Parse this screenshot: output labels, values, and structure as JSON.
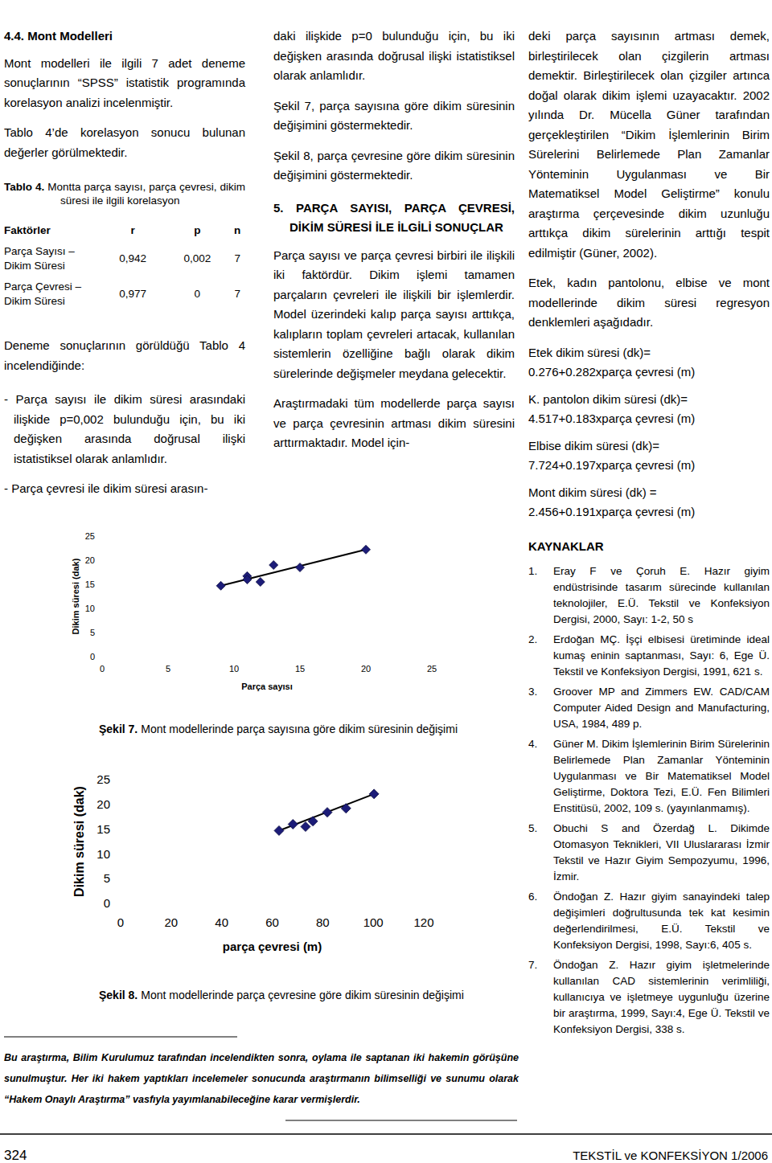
{
  "text": {
    "section_heading": "4.4. Mont Modelleri",
    "intro": [
      "Mont modelleri ile ilgili 7 adet deneme sonuçlarının “SPSS” istatistik programında korelasyon analizi incelenmiştir.",
      "Tablo 4’de korelasyon sonucu bulunan değerler görülmektedir."
    ],
    "table": {
      "label": "Tablo 4.",
      "caption": "Montta parça sayısı, parça çevresi, dikim süresi ile ilgili korelasyon",
      "header": [
        "Faktörler",
        "r",
        "p",
        "n"
      ],
      "rows": [
        [
          "Parça Sayısı – Dikim Süresi",
          "0,942",
          "0,002",
          "7"
        ],
        [
          "Parça Çevresi – Dikim Süresi",
          "0,977",
          "0",
          "7"
        ]
      ]
    },
    "after_table": "Deneme sonuçlarının görüldüğü Tablo 4 incelendiğinde:",
    "bullets": [
      "- Parça sayısı ile dikim süresi arasındaki ilişkide p=0,002 bulunduğu için, bu iki değişken arasında doğrusal ilişki istatistiksel olarak anlamlıdır.",
      "- Parça çevresi ile dikim süresi arasın-"
    ],
    "col2_paragraphs": [
      "daki ilişkide p=0 bulunduğu için, bu iki değişken arasında doğrusal ilişki istatistiksel olarak anlamlıdır.",
      "Şekil 7, parça sayısına göre dikim süresinin değişimini göstermektedir.",
      "Şekil 8, parça çevresine göre dikim süresinin değişimini göstermektedir."
    ],
    "section5_heading": "5. PARÇA SAYISI, PARÇA ÇEVRESİ, DİKİM SÜRESİ İLE İLGİLİ SONUÇLAR",
    "section5_paragraphs": [
      "Parça sayısı ve parça çevresi birbiri ile ilişkili iki faktördür. Dikim işlemi tamamen parçaların çevreleri ile ilişkili bir işlemlerdir. Model üzerindeki kalıp parça sayısı arttıkça, kalıpların toplam çevreleri artacak, kullanılan sistemlerin özelliğine bağlı olarak dikim sürelerinde değişmeler meydana gelecektir.",
      "Araştırmadaki tüm modellerde parça sayısı ve parça çevresinin artması dikim süresini arttırmaktadır. Model için-",
      "deki parça sayısının artması demek, birleştirilecek olan çizgilerin artması demektir. Birleştirilecek olan çizgiler artınca doğal olarak dikim işlemi uzayacaktır. 2002 yılında Dr. Mücella Güner tarafından gerçekleştirilen “Dikim İşlemlerinin Birim Sürelerini Belirlemede Plan Zamanlar Yönteminin Uygulanması ve Bir Matematiksel Model Geliştirme” konulu araştırma çerçevesinde dikim uzunluğu arttıkça dikim sürelerinin arttığı tespit edilmiştir (Güner, 2002).",
      "Etek, kadın pantolonu, elbise ve mont modellerinde dikim süresi regresyon denklemleri aşağıdadır."
    ],
    "equations": [
      {
        "label": "Etek dikim süresi (dk)=",
        "formula": "0.276+0.282xparça çevresi (m)"
      },
      {
        "label": "K. pantolon dikim süresi (dk)=",
        "formula": "4.517+0.183xparça çevresi (m)"
      },
      {
        "label": "Elbise dikim süresi (dk)=",
        "formula": "7.724+0.197xparça çevresi (m)"
      },
      {
        "label": "Mont dikim süresi (dk) =",
        "formula": "2.456+0.191xparça çevresi (m)"
      }
    ],
    "references_heading": "KAYNAKLAR",
    "references": [
      {
        "number": "1.",
        "text": "Eray F ve Çoruh E. Hazır giyim endüstrisinde tasarım sürecinde kullanılan teknolojiler, E.Ü. Tekstil ve Konfeksiyon Dergisi, 2000, Sayı: 1-2, 50 s"
      },
      {
        "number": "2.",
        "text": "Erdoğan MÇ. İşçi elbisesi üretiminde ideal kumaş eninin saptanması, Sayı: 6, Ege Ü. Tekstil ve Konfeksiyon Dergisi, 1991, 621 s."
      },
      {
        "number": "3.",
        "text": "Groover MP and Zimmers EW. CAD/CAM Computer Aided Design and Manufacturing, USA, 1984, 489 p."
      },
      {
        "number": "4.",
        "text": "Güner M. Dikim İşlemlerinin Birim Sürelerinin Belirlemede Plan Zamanlar Yönteminin Uygulanması ve Bir Matematiksel Model Geliştirme, Doktora Tezi, E.Ü. Fen Bilimleri Enstitüsü, 2002, 109 s. (yayınlanmamış)."
      },
      {
        "number": "5.",
        "text": "Obuchi S and Özerdağ L. Dikimde Otomasyon Teknikleri, VII Uluslararası İzmir Tekstil ve Hazır Giyim Sempozyumu, 1996, İzmir."
      },
      {
        "number": "6.",
        "text": "Öndoğan Z. Hazır giyim sanayindeki talep değişimleri doğrultusunda tek kat kesimin değerlendirilmesi, E.Ü. Tekstil ve Konfeksiyon Dergisi, 1998, Sayı:6, 405 s."
      },
      {
        "number": "7.",
        "text": "Öndoğan Z. Hazır giyim işletmelerinde kullanılan CAD sistemlerinin verimliliği, kullanıcıya ve işletmeye uygunluğu üzerine bir araştırma, 1999, Sayı:4, Ege Ü. Tekstil ve Konfeksiyon Dergisi, 338 s."
      }
    ],
    "footnote": "Bu araştırma, Bilim Kurulumuz tarafından incelendikten sonra, oylama ile saptanan iki hakemin görüşüne sunulmuştur. Her iki hakem yaptıkları incelemeler sonucunda araştırmanın bilimselliği ve sunumu olarak “Hakem Onaylı Araştırma” vasfıyla yayımlanabileceğine karar vermişlerdir.",
    "footer": {
      "page": "324",
      "journal": "TEKSTİL ve KONFEKSİYON 1/2006"
    }
  },
  "figures": [
    {
      "label": "Şekil 7.",
      "caption": "Mont modellerinde parça sayısına göre dikim süresinin değişimi"
    },
    {
      "label": "Şekil 8.",
      "caption": "Mont modellerinde parça çevresine göre dikim süresinin değişimi"
    }
  ],
  "chart_data": [
    {
      "type": "scatter",
      "x": [
        9,
        11,
        11,
        12,
        13,
        15,
        20
      ],
      "values": [
        14.7,
        16.7,
        16,
        15.5,
        19,
        18.5,
        22.2
      ],
      "xlim": [
        0,
        25
      ],
      "ylim": [
        0,
        25
      ],
      "xticks": [
        0,
        5,
        10,
        15,
        20,
        25
      ],
      "yticks": [
        0,
        5,
        10,
        15,
        20,
        25
      ],
      "xlabel": "Parça sayısı",
      "ylabel": "Dikim süresi (dak)",
      "color": "#1c1c78",
      "marker": "diamond",
      "trendline": {
        "x": [
          9,
          20
        ],
        "values": [
          14.7,
          22.2
        ]
      }
    },
    {
      "type": "scatter",
      "x": [
        62.7,
        68.2,
        73.2,
        76.1,
        81.8,
        89.2,
        100.3
      ],
      "values": [
        14.7,
        16,
        15.5,
        16.6,
        18.4,
        19.2,
        22.1
      ],
      "xlim": [
        0,
        120
      ],
      "ylim": [
        0,
        25
      ],
      "xticks": [
        0,
        20,
        40,
        60,
        80,
        100,
        120
      ],
      "yticks": [
        0,
        5,
        10,
        15,
        20,
        25
      ],
      "xlabel": "parça çevresi (m)",
      "ylabel": "Dikim süresi (dak)",
      "color": "#1c1c78",
      "marker": "diamond",
      "trendline": {
        "x": [
          62.7,
          100.3
        ],
        "values": [
          14.7,
          22.1
        ]
      }
    }
  ]
}
